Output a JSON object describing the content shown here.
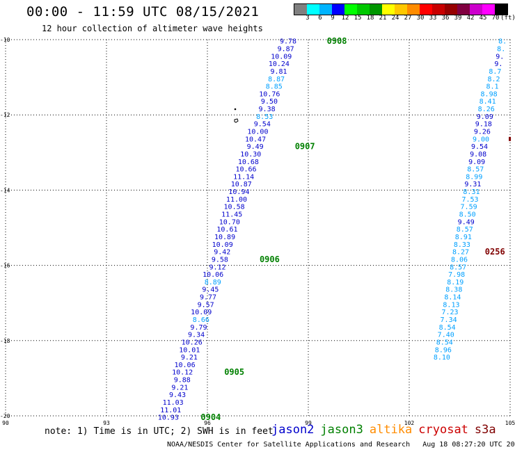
{
  "header": {
    "title": "00:00 - 11:59 UTC 08/15/2021",
    "subtitle": "12 hour collection of altimeter wave heights"
  },
  "colorbar": {
    "colors": [
      "#808080",
      "#00ffff",
      "#00b4ff",
      "#0000ff",
      "#00ff00",
      "#00c800",
      "#009600",
      "#ffff00",
      "#ffc800",
      "#ff8c00",
      "#ff0000",
      "#c80000",
      "#960000",
      "#800040",
      "#cc00cc",
      "#ff00ff",
      "#000000"
    ],
    "labels": [
      "3",
      "6",
      "9",
      "12",
      "15",
      "18",
      "21",
      "24",
      "27",
      "30",
      "33",
      "36",
      "39",
      "42",
      "45",
      "70",
      "(ft)"
    ]
  },
  "axes": {
    "lon_labels": [
      "90",
      "93",
      "96",
      "99",
      "102",
      "105"
    ],
    "lat_labels": [
      "-10",
      "-12",
      "-14",
      "-16",
      "-18",
      "-20"
    ]
  },
  "colors": {
    "jason2": "#0000cc",
    "jason3": "#008000",
    "altika": "#ff8c00",
    "cryosat": "#cc0000",
    "s3a": "#800000",
    "light": "#00a0ff"
  },
  "tracks": [
    {
      "satellite": "jason3",
      "points": [
        {
          "swh": "9.78",
          "c": "d",
          "lat": -10.04,
          "lon": 98.65
        },
        {
          "swh": "9.87",
          "c": "d",
          "lat": -10.24,
          "lon": 98.58
        },
        {
          "swh": "10.09",
          "c": "d",
          "lat": -10.44,
          "lon": 98.51
        },
        {
          "swh": "10.24",
          "c": "d",
          "lat": -10.64,
          "lon": 98.44
        },
        {
          "swh": "9.81",
          "c": "d",
          "lat": -10.84,
          "lon": 98.37
        },
        {
          "swh": "8.87",
          "c": "l",
          "lat": -11.04,
          "lon": 98.3
        },
        {
          "swh": "8.85",
          "c": "l",
          "lat": -11.24,
          "lon": 98.23
        },
        {
          "swh": "10.76",
          "c": "d",
          "lat": -11.44,
          "lon": 98.16
        },
        {
          "swh": "9.50",
          "c": "d",
          "lat": -11.64,
          "lon": 98.09
        },
        {
          "swh": "9.38",
          "c": "d",
          "lat": -11.84,
          "lon": 98.02
        },
        {
          "swh": "8.53",
          "c": "l",
          "lat": -12.04,
          "lon": 97.95
        },
        {
          "swh": "9.54",
          "c": "d",
          "lat": -12.24,
          "lon": 97.88
        },
        {
          "swh": "10.00",
          "c": "d",
          "lat": -12.44,
          "lon": 97.81
        },
        {
          "swh": "10.47",
          "c": "d",
          "lat": -12.64,
          "lon": 97.74
        },
        {
          "swh": "9.49",
          "c": "d",
          "lat": -12.84,
          "lon": 97.67
        },
        {
          "swh": "10.30",
          "c": "d",
          "lat": -13.04,
          "lon": 97.6
        },
        {
          "swh": "10.68",
          "c": "d",
          "lat": -13.24,
          "lon": 97.53
        },
        {
          "swh": "10.66",
          "c": "d",
          "lat": -13.44,
          "lon": 97.46
        },
        {
          "swh": "11.14",
          "c": "d",
          "lat": -13.64,
          "lon": 97.39
        },
        {
          "swh": "10.87",
          "c": "d",
          "lat": -13.84,
          "lon": 97.32
        },
        {
          "swh": "10.94",
          "c": "d",
          "lat": -14.04,
          "lon": 97.25
        },
        {
          "swh": "11.00",
          "c": "d",
          "lat": -14.24,
          "lon": 97.18
        },
        {
          "swh": "10.58",
          "c": "d",
          "lat": -14.44,
          "lon": 97.11
        },
        {
          "swh": "11.45",
          "c": "d",
          "lat": -14.64,
          "lon": 97.04
        },
        {
          "swh": "10.70",
          "c": "d",
          "lat": -14.84,
          "lon": 96.97
        },
        {
          "swh": "10.61",
          "c": "d",
          "lat": -15.04,
          "lon": 96.9
        },
        {
          "swh": "10.89",
          "c": "d",
          "lat": -15.24,
          "lon": 96.83
        },
        {
          "swh": "10.09",
          "c": "d",
          "lat": -15.44,
          "lon": 96.76
        },
        {
          "swh": "9.42",
          "c": "d",
          "lat": -15.64,
          "lon": 96.69
        },
        {
          "swh": "9.58",
          "c": "d",
          "lat": -15.84,
          "lon": 96.62
        },
        {
          "swh": "9.12",
          "c": "d",
          "lat": -16.04,
          "lon": 96.55
        },
        {
          "swh": "10.06",
          "c": "d",
          "lat": -16.24,
          "lon": 96.48
        },
        {
          "swh": "8.89",
          "c": "l",
          "lat": -16.44,
          "lon": 96.41
        },
        {
          "swh": "9.45",
          "c": "d",
          "lat": -16.64,
          "lon": 96.34
        },
        {
          "swh": "9.77",
          "c": "d",
          "lat": -16.84,
          "lon": 96.27
        },
        {
          "swh": "9.57",
          "c": "d",
          "lat": -17.04,
          "lon": 96.2
        },
        {
          "swh": "10.09",
          "c": "d",
          "lat": -17.24,
          "lon": 96.13
        },
        {
          "swh": "8.66",
          "c": "l",
          "lat": -17.44,
          "lon": 96.06
        },
        {
          "swh": "9.79",
          "c": "d",
          "lat": -17.64,
          "lon": 95.99
        },
        {
          "swh": "9.34",
          "c": "d",
          "lat": -17.84,
          "lon": 95.92
        },
        {
          "swh": "10.26",
          "c": "d",
          "lat": -18.04,
          "lon": 95.85
        },
        {
          "swh": "10.01",
          "c": "d",
          "lat": -18.24,
          "lon": 95.78
        },
        {
          "swh": "9.21",
          "c": "d",
          "lat": -18.44,
          "lon": 95.71
        },
        {
          "swh": "10.06",
          "c": "d",
          "lat": -18.64,
          "lon": 95.64
        },
        {
          "swh": "10.12",
          "c": "d",
          "lat": -18.84,
          "lon": 95.57
        },
        {
          "swh": "9.88",
          "c": "d",
          "lat": -19.04,
          "lon": 95.5
        },
        {
          "swh": "9.21",
          "c": "d",
          "lat": -19.24,
          "lon": 95.43
        },
        {
          "swh": "9.43",
          "c": "d",
          "lat": -19.44,
          "lon": 95.36
        },
        {
          "swh": "11.03",
          "c": "d",
          "lat": -19.64,
          "lon": 95.29
        },
        {
          "swh": "11.01",
          "c": "d",
          "lat": -19.84,
          "lon": 95.22
        },
        {
          "swh": "10.93",
          "c": "d",
          "lat": -20.04,
          "lon": 95.15
        }
      ],
      "times": [
        {
          "label": "0908",
          "lat": -10.04,
          "lon": 99.85
        },
        {
          "label": "0907",
          "lat": -12.84,
          "lon": 98.9
        },
        {
          "label": "0906",
          "lat": -15.84,
          "lon": 97.85
        },
        {
          "label": "0905",
          "lat": -18.84,
          "lon": 96.8
        },
        {
          "label": "0904",
          "lat": -20.04,
          "lon": 96.1
        }
      ]
    },
    {
      "satellite": "s3a",
      "points": [
        {
          "swh": "8.",
          "c": "l",
          "lat": -10.04,
          "lon": 104.9
        },
        {
          "swh": "8.",
          "c": "l",
          "lat": -10.24,
          "lon": 104.86
        },
        {
          "swh": "9.",
          "c": "d",
          "lat": -10.44,
          "lon": 104.82
        },
        {
          "swh": "9.",
          "c": "d",
          "lat": -10.64,
          "lon": 104.78
        },
        {
          "swh": "8.7",
          "c": "l",
          "lat": -10.84,
          "lon": 104.74
        },
        {
          "swh": "8.2",
          "c": "l",
          "lat": -11.04,
          "lon": 104.7
        },
        {
          "swh": "8.1",
          "c": "l",
          "lat": -11.24,
          "lon": 104.66
        },
        {
          "swh": "8.98",
          "c": "l",
          "lat": -11.44,
          "lon": 104.62
        },
        {
          "swh": "8.41",
          "c": "l",
          "lat": -11.64,
          "lon": 104.58
        },
        {
          "swh": "8.26",
          "c": "l",
          "lat": -11.84,
          "lon": 104.54
        },
        {
          "swh": "9.09",
          "c": "d",
          "lat": -12.04,
          "lon": 104.5
        },
        {
          "swh": "9.18",
          "c": "d",
          "lat": -12.24,
          "lon": 104.46
        },
        {
          "swh": "9.26",
          "c": "d",
          "lat": -12.44,
          "lon": 104.42
        },
        {
          "swh": "9.00",
          "c": "l",
          "lat": -12.64,
          "lon": 104.38
        },
        {
          "swh": "9.54",
          "c": "d",
          "lat": -12.84,
          "lon": 104.34
        },
        {
          "swh": "9.08",
          "c": "d",
          "lat": -13.04,
          "lon": 104.3
        },
        {
          "swh": "9.09",
          "c": "d",
          "lat": -13.24,
          "lon": 104.26
        },
        {
          "swh": "8.57",
          "c": "l",
          "lat": -13.44,
          "lon": 104.22
        },
        {
          "swh": "8.99",
          "c": "l",
          "lat": -13.64,
          "lon": 104.18
        },
        {
          "swh": "9.31",
          "c": "d",
          "lat": -13.84,
          "lon": 104.14
        },
        {
          "swh": "8.31",
          "c": "l",
          "lat": -14.04,
          "lon": 104.1
        },
        {
          "swh": "7.53",
          "c": "l",
          "lat": -14.24,
          "lon": 104.06
        },
        {
          "swh": "7.59",
          "c": "l",
          "lat": -14.44,
          "lon": 104.02
        },
        {
          "swh": "8.50",
          "c": "l",
          "lat": -14.64,
          "lon": 103.98
        },
        {
          "swh": "9.49",
          "c": "d",
          "lat": -14.84,
          "lon": 103.94
        },
        {
          "swh": "8.57",
          "c": "l",
          "lat": -15.04,
          "lon": 103.9
        },
        {
          "swh": "8.91",
          "c": "l",
          "lat": -15.24,
          "lon": 103.86
        },
        {
          "swh": "8.33",
          "c": "l",
          "lat": -15.44,
          "lon": 103.82
        },
        {
          "swh": "8.27",
          "c": "l",
          "lat": -15.64,
          "lon": 103.78
        },
        {
          "swh": "8.06",
          "c": "l",
          "lat": -15.84,
          "lon": 103.74
        },
        {
          "swh": "8.57",
          "c": "l",
          "lat": -16.04,
          "lon": 103.7
        },
        {
          "swh": "7.98",
          "c": "l",
          "lat": -16.24,
          "lon": 103.66
        },
        {
          "swh": "8.19",
          "c": "l",
          "lat": -16.44,
          "lon": 103.62
        },
        {
          "swh": "8.38",
          "c": "l",
          "lat": -16.64,
          "lon": 103.58
        },
        {
          "swh": "8.14",
          "c": "l",
          "lat": -16.84,
          "lon": 103.54
        },
        {
          "swh": "8.13",
          "c": "l",
          "lat": -17.04,
          "lon": 103.5
        },
        {
          "swh": "7.23",
          "c": "l",
          "lat": -17.24,
          "lon": 103.46
        },
        {
          "swh": "7.34",
          "c": "l",
          "lat": -17.44,
          "lon": 103.42
        },
        {
          "swh": "8.54",
          "c": "l",
          "lat": -17.64,
          "lon": 103.38
        },
        {
          "swh": "7.40",
          "c": "l",
          "lat": -17.84,
          "lon": 103.34
        },
        {
          "swh": "8.54",
          "c": "l",
          "lat": -18.04,
          "lon": 103.3
        },
        {
          "swh": "8.96",
          "c": "l",
          "lat": -18.24,
          "lon": 103.26
        },
        {
          "swh": "8.10",
          "c": "l",
          "lat": -18.44,
          "lon": 103.22
        }
      ],
      "times": [
        {
          "label": "0256",
          "lat": -15.64,
          "lon": 104.55
        }
      ]
    }
  ],
  "note": "note: 1) Time is in UTC; 2) SWH is in feet",
  "legend": [
    "jason2",
    "jason3",
    "altika",
    "cryosat",
    "s3a"
  ],
  "credit": {
    "org": "NOAA/NESDIS Center for Satellite Applications and Research",
    "timestamp": "Aug 18 08:27:20 UTC 2021"
  }
}
